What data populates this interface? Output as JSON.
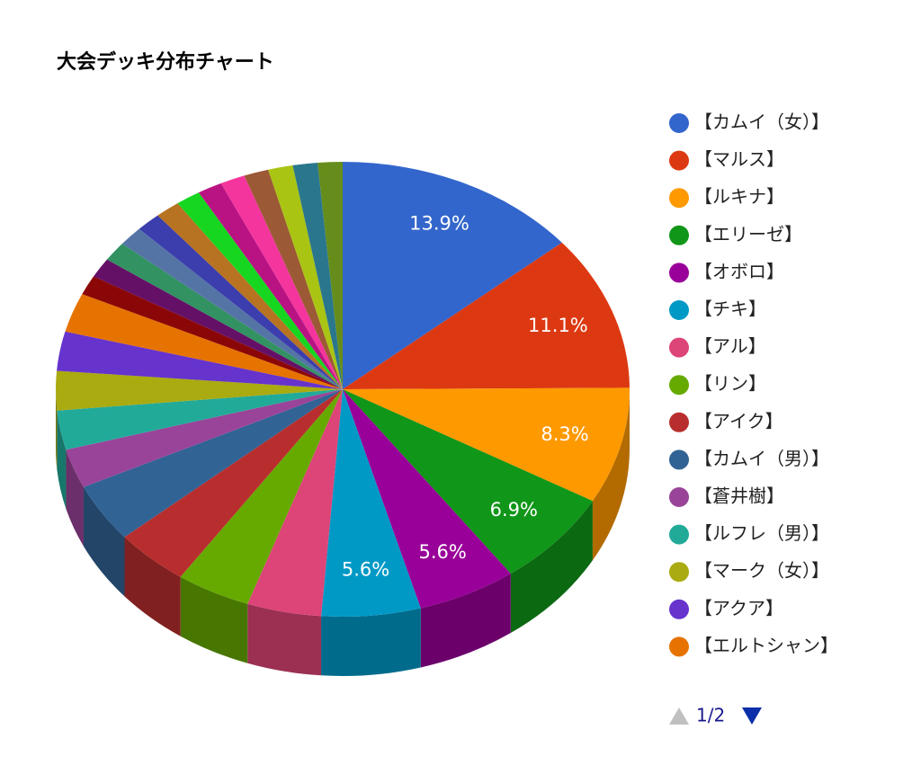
{
  "chart_data": {
    "type": "pie3d",
    "title": "大会デッキ分布チャート",
    "categories": [
      "【カムイ（女）】",
      "【マルス】",
      "【ルキナ】",
      "【エリーゼ】",
      "【オボロ】",
      "【チキ】",
      "【アル】",
      "【リン】",
      "【アイク】",
      "【カムイ（男）】",
      "【蒼井樹】",
      "【ルフレ（男）】",
      "【マーク（女）】",
      "【アクア】",
      "【エルトシャン】",
      null,
      null,
      null,
      null,
      null,
      null,
      null,
      null,
      null,
      null,
      null,
      null,
      null
    ],
    "values": [
      13.9,
      11.1,
      8.3,
      6.9,
      5.6,
      5.6,
      4.2,
      4.2,
      4.2,
      4.2,
      2.8,
      2.8,
      2.8,
      2.8,
      2.8,
      1.4,
      1.4,
      1.4,
      1.4,
      1.4,
      1.4,
      1.4,
      1.4,
      1.4,
      1.4,
      1.4,
      1.4,
      1.4
    ],
    "value_labels": [
      "13.9%",
      "11.1%",
      "8.3%",
      "6.9%",
      "5.6%",
      "5.6%",
      null,
      null,
      null,
      null,
      null,
      null,
      null,
      null,
      null,
      null,
      null,
      null,
      null,
      null,
      null,
      null,
      null,
      null,
      null,
      null,
      null,
      null
    ],
    "colors": [
      "#3366cc",
      "#dc3912",
      "#ff9900",
      "#109618",
      "#990099",
      "#0099c6",
      "#dd4477",
      "#66aa00",
      "#b82e2e",
      "#316395",
      "#994499",
      "#22aa99",
      "#aaaa11",
      "#6633cc",
      "#e67300",
      "#8b0707",
      "#651067",
      "#329262",
      "#5574a6",
      "#3b3eac",
      "#b77322",
      "#16d620",
      "#b91383",
      "#f4359e",
      "#9c5935",
      "#a9c413",
      "#2a778d",
      "#668d1c"
    ],
    "legend_position": "right",
    "legend_page": "1/2"
  }
}
